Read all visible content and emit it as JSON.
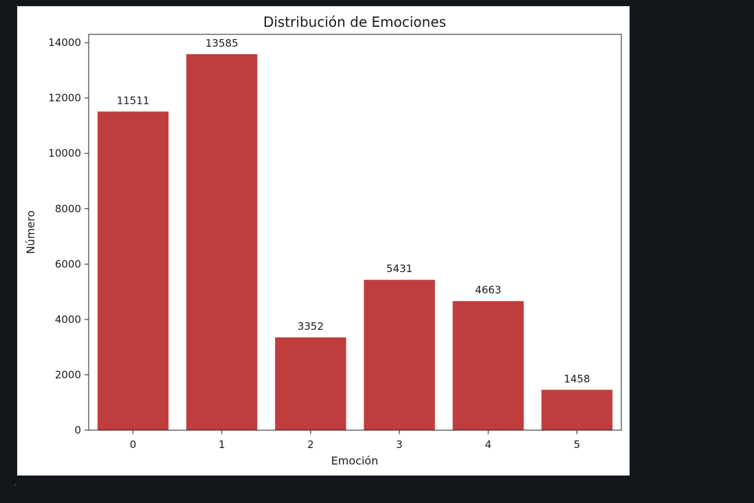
{
  "colors": {
    "page_background": "#13161b",
    "figure_background": "#ffffff",
    "bar": "#c03d3e",
    "axis": "#1a1a1a"
  },
  "scroll_icon": "chevron-left-icon",
  "chart_data": {
    "type": "bar",
    "title": "Distribución de Emociones",
    "xlabel": "Emoción",
    "ylabel": "Número",
    "categories": [
      "0",
      "1",
      "2",
      "3",
      "4",
      "5"
    ],
    "values": [
      11511,
      13585,
      3352,
      5431,
      4663,
      1458
    ],
    "data_labels": [
      "11511",
      "13585",
      "3352",
      "5431",
      "4663",
      "1458"
    ],
    "ylim": [
      0,
      14300
    ],
    "yticks": [
      0,
      2000,
      4000,
      6000,
      8000,
      10000,
      12000,
      14000
    ],
    "ytick_labels": [
      "0",
      "2000",
      "4000",
      "6000",
      "8000",
      "10000",
      "12000",
      "14000"
    ],
    "grid": false,
    "legend": "none"
  }
}
